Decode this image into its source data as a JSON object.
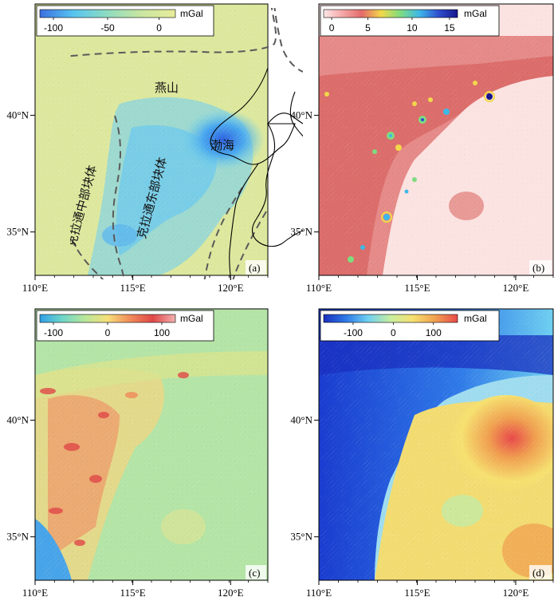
{
  "colorbar_unit": "mGal",
  "labels": {
    "yanshan": "燕山",
    "bohai": "渤海",
    "west_block": "克拉通中部块体",
    "east_block": "克拉通东部块体"
  },
  "axis": {
    "x_ticks": [
      "110°E",
      "115°E",
      "120°E"
    ],
    "y_ticks": [
      "40°N",
      "35°N"
    ]
  },
  "panels": [
    {
      "id": "a",
      "letter": "(a)",
      "colorbar": {
        "ticks": [
          "-100",
          "-50",
          "0"
        ],
        "colors": [
          "#3a6fe0",
          "#57c5f0",
          "#8fdcc0",
          "#c9e6a0",
          "#e8ec9a"
        ]
      }
    },
    {
      "id": "b",
      "letter": "(b)",
      "colorbar": {
        "ticks": [
          "0",
          "5",
          "10",
          "15"
        ],
        "colors": [
          "#fde6e6",
          "#f4a6a6",
          "#e46a6a",
          "#f2d84a",
          "#7fdc7f",
          "#3fb8e8",
          "#2f4fd0",
          "#17178a"
        ]
      }
    },
    {
      "id": "c",
      "letter": "(c)",
      "colorbar": {
        "ticks": [
          "-100",
          "0",
          "100"
        ],
        "colors": [
          "#2fa0e8",
          "#6fd6c8",
          "#b8e69a",
          "#f6e07a",
          "#f08a5a",
          "#e04848",
          "#f4b0b0"
        ]
      }
    },
    {
      "id": "d",
      "letter": "(d)",
      "colorbar": {
        "ticks": [
          "-100",
          "0",
          "100"
        ],
        "colors": [
          "#1a2fbf",
          "#2f7ae8",
          "#6fd0f0",
          "#c8eea0",
          "#f6e070",
          "#f0a050",
          "#e84a4a"
        ]
      }
    }
  ]
}
